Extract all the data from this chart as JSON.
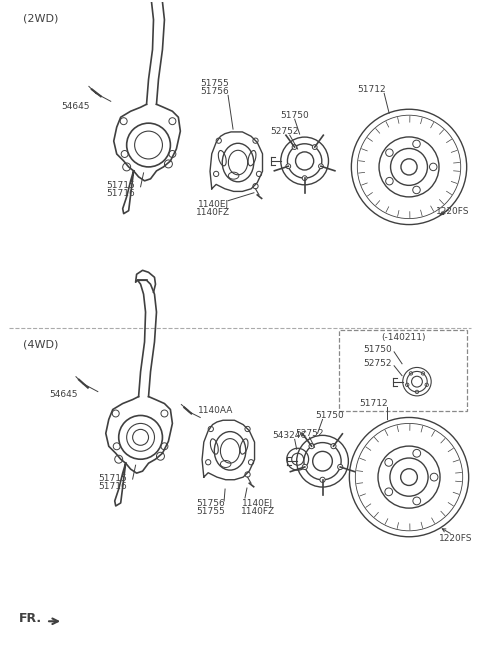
{
  "bg_color": "#ffffff",
  "line_color": "#404040",
  "dashed_line_color": "#aaaaaa",
  "label_color": "#404040",
  "title_2wd": "(2WD)",
  "title_4wd": "(4WD)",
  "fr_label": "FR.",
  "inset_label": "(-140211)"
}
